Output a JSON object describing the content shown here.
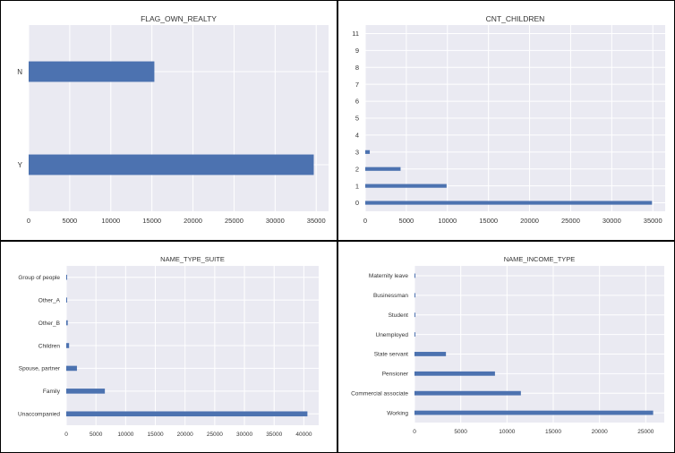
{
  "colors": {
    "bar": "#4c72b0",
    "plot_bg": "#eaeaf2",
    "grid": "#ffffff",
    "border": "#000000"
  },
  "chart_data": [
    {
      "type": "bar",
      "orientation": "horizontal",
      "title": "FLAG_OWN_REALTY",
      "categories": [
        "Y",
        "N"
      ],
      "values": [
        34700,
        15300
      ],
      "xlim": [
        0,
        36500
      ],
      "xticks": [
        0,
        5000,
        10000,
        15000,
        20000,
        25000,
        30000,
        35000
      ],
      "grid": true
    },
    {
      "type": "bar",
      "orientation": "horizontal",
      "title": "CNT_CHILDREN",
      "categories": [
        "0",
        "1",
        "2",
        "3",
        "4",
        "5",
        "6",
        "7",
        "8",
        "9",
        "11"
      ],
      "values": [
        34900,
        9900,
        4300,
        550,
        0,
        0,
        0,
        0,
        0,
        0,
        0
      ],
      "xlim": [
        0,
        36500
      ],
      "xticks": [
        0,
        5000,
        10000,
        15000,
        20000,
        25000,
        30000,
        35000
      ],
      "grid": true
    },
    {
      "type": "bar",
      "orientation": "horizontal",
      "title": "NAME_TYPE_SUITE",
      "categories": [
        "Unaccompanied",
        "Family",
        "Spouse, partner",
        "Children",
        "Other_B",
        "Other_A",
        "Group of people"
      ],
      "values": [
        40600,
        6500,
        1800,
        480,
        250,
        80,
        30
      ],
      "xlim": [
        0,
        42500
      ],
      "xticks": [
        0,
        5000,
        10000,
        15000,
        20000,
        25000,
        30000,
        35000,
        40000
      ],
      "grid": true
    },
    {
      "type": "bar",
      "orientation": "horizontal",
      "title": "NAME_INCOME_TYPE",
      "categories": [
        "Working",
        "Commercial associate",
        "Pensioner",
        "State servant",
        "Unemployed",
        "Student",
        "Businessman",
        "Maternity leave"
      ],
      "values": [
        25800,
        11500,
        8700,
        3400,
        10,
        5,
        5,
        3
      ],
      "xlim": [
        0,
        27000
      ],
      "xticks": [
        0,
        5000,
        10000,
        15000,
        20000,
        25000
      ],
      "grid": true
    }
  ]
}
